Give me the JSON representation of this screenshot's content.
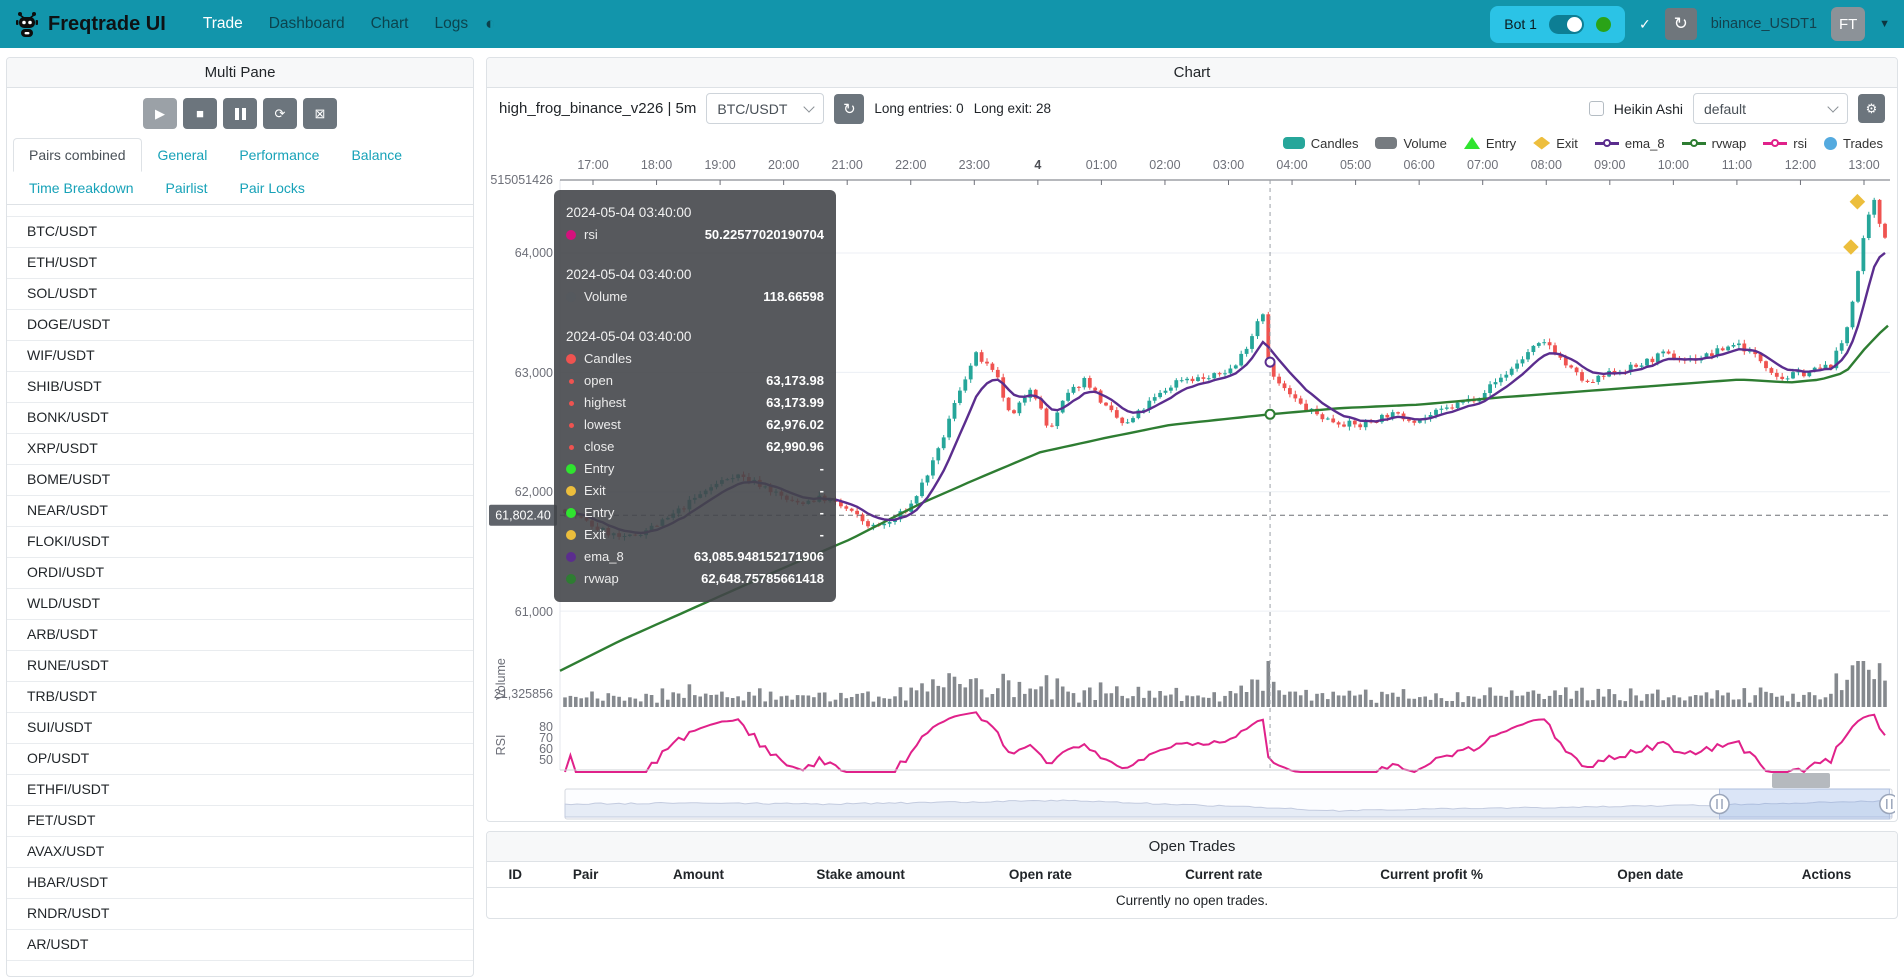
{
  "navbar": {
    "brand": "Freqtrade UI",
    "items": [
      {
        "label": "Trade",
        "active": true
      },
      {
        "label": "Dashboard",
        "active": false
      },
      {
        "label": "Chart",
        "active": false
      },
      {
        "label": "Logs",
        "active": false
      }
    ],
    "theme_icon": "◐",
    "bot": {
      "name": "Bot 1",
      "online": true
    },
    "check_icon": "✓",
    "reload_icon": "↻",
    "exchange_label": "binance_USDT1",
    "avatar": "FT",
    "caret": "▼"
  },
  "left_panel": {
    "title": "Multi Pane",
    "controls": [
      {
        "name": "play-button",
        "glyph": "▶",
        "disabled": true
      },
      {
        "name": "stop-button",
        "glyph": "■",
        "disabled": false
      },
      {
        "name": "pause-button",
        "glyph": "",
        "disabled": false
      },
      {
        "name": "reload-trades-button",
        "glyph": "⟳",
        "disabled": false
      },
      {
        "name": "clear-chart-button",
        "glyph": "⊠",
        "disabled": false
      }
    ],
    "tabs": [
      "Pairs combined",
      "General",
      "Performance",
      "Balance",
      "Time Breakdown",
      "Pairlist",
      "Pair Locks"
    ],
    "active_tab": "Pairs combined",
    "pairs": [
      "BTC/USDT",
      "ETH/USDT",
      "SOL/USDT",
      "DOGE/USDT",
      "WIF/USDT",
      "SHIB/USDT",
      "BONK/USDT",
      "XRP/USDT",
      "BOME/USDT",
      "NEAR/USDT",
      "FLOKI/USDT",
      "ORDI/USDT",
      "WLD/USDT",
      "ARB/USDT",
      "RUNE/USDT",
      "TRB/USDT",
      "SUI/USDT",
      "OP/USDT",
      "ETHFI/USDT",
      "FET/USDT",
      "AVAX/USDT",
      "HBAR/USDT",
      "RNDR/USDT",
      "AR/USDT"
    ]
  },
  "chart_panel": {
    "title": "Chart",
    "strategy": "high_frog_binance_v226 | 5m",
    "pair_select": "BTC/USDT",
    "refresh_icon": "↻",
    "long_entries": "Long entries: 0",
    "long_exit": "Long exit: 28",
    "heikin_ashi_label": "Heikin Ashi",
    "plot_config_select": "default",
    "gear_icon": "⚙",
    "legend": [
      {
        "label": "Candles",
        "color": "#26a69a",
        "shape": "pill"
      },
      {
        "label": "Volume",
        "color": "#767b80",
        "shape": "pill"
      },
      {
        "label": "Entry",
        "color": "#2fe42f",
        "shape": "triangle"
      },
      {
        "label": "Exit",
        "color": "#edbe3d",
        "shape": "diamond"
      },
      {
        "label": "ema_8",
        "color": "#5b2d8e",
        "shape": "line"
      },
      {
        "label": "rvwap",
        "color": "#2e7d32",
        "shape": "line"
      },
      {
        "label": "rsi",
        "color": "#e0218a",
        "shape": "line"
      },
      {
        "label": "Trades",
        "color": "#54aadf",
        "shape": "circle"
      }
    ],
    "tooltip": {
      "sections": [
        {
          "time": "2024-05-04 03:40:00",
          "rows": [
            {
              "label": "rsi",
              "dot": "#d4117d",
              "value": "50.22577020190704"
            }
          ]
        },
        {
          "time": "2024-05-04 03:40:00",
          "rows": [
            {
              "label": "Volume",
              "dot": "#55595e",
              "value": "118.66598"
            }
          ]
        },
        {
          "time": "2024-05-04 03:40:00",
          "rows": [
            {
              "label": "Candles",
              "dot": "#ef5350",
              "value": ""
            },
            {
              "label": "open",
              "dot": "#ef5350",
              "small": true,
              "value": "63,173.98"
            },
            {
              "label": "highest",
              "dot": "#ef5350",
              "small": true,
              "value": "63,173.99"
            },
            {
              "label": "lowest",
              "dot": "#ef5350",
              "small": true,
              "value": "62,976.02"
            },
            {
              "label": "close",
              "dot": "#ef5350",
              "small": true,
              "value": "62,990.96"
            },
            {
              "label": "Entry",
              "dot": "#2fe42f",
              "value": "-"
            },
            {
              "label": "Exit",
              "dot": "#ecbe3c",
              "value": "-"
            },
            {
              "label": "Entry",
              "dot": "#2fe42f",
              "value": "-"
            },
            {
              "label": "Exit",
              "dot": "#ecbe3c",
              "value": "-"
            },
            {
              "label": "ema_8",
              "dot": "#5b2d8e",
              "value": "63,085.948152171906"
            },
            {
              "label": "rvwap",
              "dot": "#2e7d32",
              "value": "62,648.75785661418"
            }
          ]
        }
      ]
    }
  },
  "chart_data": {
    "type": "candlestick",
    "pair": "BTC/USDT",
    "timeframe": "5m",
    "seed": 7,
    "candle_count": 245,
    "minutes_span": 1225,
    "x_labels": [
      "17:00",
      "18:00",
      "19:00",
      "20:00",
      "21:00",
      "22:00",
      "23:00",
      "4",
      "01:00",
      "02:00",
      "03:00",
      "04:00",
      "05:00",
      "06:00",
      "07:00",
      "08:00",
      "09:00",
      "10:00",
      "11:00",
      "12:00",
      "13:00"
    ],
    "y_labels": [
      "64,000",
      "63,000",
      "62,000",
      "61,000"
    ],
    "y_gridlines_price": [
      64000,
      63000,
      62000,
      61000
    ],
    "y_axis_top_label": "515051426",
    "volume_axis_label": "21,325856",
    "volume_pane_label": "Volume",
    "rsi_pane_label": "RSI",
    "rsi_labels": [
      "80",
      "70",
      "60",
      "50"
    ],
    "price_tag": "61,802.40",
    "dashed_price": 61802.4,
    "crosshair_minute": 654,
    "crosshair_time": "2024-05-04 03:40:00",
    "crosshair_ohlc": {
      "open": 63173.98,
      "high": 63173.99,
      "low": 62976.02,
      "close": 62990.96
    },
    "crosshair_ema8": 63085.948152171906,
    "crosshair_rvwap": 62648.75785661418,
    "crosshair_rsi": 50.22577020190704,
    "crosshair_volume": 118.66598,
    "price_keypoints": [
      [
        0,
        61850
      ],
      [
        28,
        61700
      ],
      [
        55,
        61600
      ],
      [
        92,
        61750
      ],
      [
        129,
        62000
      ],
      [
        157,
        62150
      ],
      [
        184,
        62050
      ],
      [
        212,
        61900
      ],
      [
        239,
        61950
      ],
      [
        262,
        61850
      ],
      [
        285,
        61700
      ],
      [
        304,
        61750
      ],
      [
        322,
        61900
      ],
      [
        345,
        62300
      ],
      [
        368,
        62900
      ],
      [
        382,
        63150
      ],
      [
        401,
        62950
      ],
      [
        414,
        62600
      ],
      [
        433,
        62900
      ],
      [
        449,
        62500
      ],
      [
        465,
        62800
      ],
      [
        483,
        62950
      ],
      [
        502,
        62700
      ],
      [
        520,
        62550
      ],
      [
        543,
        62750
      ],
      [
        571,
        62950
      ],
      [
        599,
        62950
      ],
      [
        622,
        63050
      ],
      [
        637,
        63300
      ],
      [
        647,
        63550
      ],
      [
        654,
        62990
      ],
      [
        668,
        62850
      ],
      [
        686,
        62700
      ],
      [
        709,
        62600
      ],
      [
        737,
        62550
      ],
      [
        764,
        62650
      ],
      [
        792,
        62600
      ],
      [
        820,
        62700
      ],
      [
        847,
        62800
      ],
      [
        875,
        63000
      ],
      [
        898,
        63200
      ],
      [
        912,
        63250
      ],
      [
        930,
        63050
      ],
      [
        949,
        62900
      ],
      [
        972,
        63000
      ],
      [
        995,
        63050
      ],
      [
        1018,
        63150
      ],
      [
        1041,
        63100
      ],
      [
        1064,
        63150
      ],
      [
        1087,
        63250
      ],
      [
        1110,
        63100
      ],
      [
        1128,
        62950
      ],
      [
        1151,
        63000
      ],
      [
        1174,
        63050
      ],
      [
        1188,
        63300
      ],
      [
        1199,
        63800
      ],
      [
        1208,
        64250
      ],
      [
        1216,
        64450
      ],
      [
        1221,
        64200
      ],
      [
        1225,
        64150
      ]
    ],
    "rvwap_keypoints": [
      [
        0,
        60500
      ],
      [
        55,
        60750
      ],
      [
        129,
        61050
      ],
      [
        203,
        61350
      ],
      [
        267,
        61600
      ],
      [
        332,
        61900
      ],
      [
        382,
        62100
      ],
      [
        442,
        62330
      ],
      [
        502,
        62450
      ],
      [
        562,
        62560
      ],
      [
        654,
        62649
      ],
      [
        718,
        62700
      ],
      [
        792,
        62730
      ],
      [
        866,
        62790
      ],
      [
        940,
        62840
      ],
      [
        1013,
        62890
      ],
      [
        1087,
        62940
      ],
      [
        1133,
        62915
      ],
      [
        1161,
        62940
      ],
      [
        1184,
        63000
      ],
      [
        1202,
        63200
      ],
      [
        1221,
        63380
      ],
      [
        1225,
        63400
      ]
    ],
    "exit_markers": [
      [
        1195,
        64430
      ],
      [
        1189,
        64050
      ]
    ],
    "nav_profile": [
      [
        0,
        0.5
      ],
      [
        0.1,
        0.45
      ],
      [
        0.2,
        0.5
      ],
      [
        0.3,
        0.42
      ],
      [
        0.38,
        0.35
      ],
      [
        0.45,
        0.5
      ],
      [
        0.52,
        0.62
      ],
      [
        0.58,
        0.78
      ],
      [
        0.65,
        0.72
      ],
      [
        0.72,
        0.66
      ],
      [
        0.8,
        0.6
      ],
      [
        0.86,
        0.55
      ],
      [
        0.92,
        0.48
      ],
      [
        0.97,
        0.4
      ],
      [
        1,
        0.38
      ]
    ],
    "zoom_window": [
      0.87,
      0.998
    ],
    "colors": {
      "up": "#26a69a",
      "down": "#ef5350",
      "ema": "#5b2d8e",
      "rvwap": "#2e7d32",
      "rsi": "#e0218a",
      "exit": "#ecbe3c",
      "volume": "#85898e"
    }
  },
  "open_trades": {
    "title": "Open Trades",
    "columns": [
      "ID",
      "Pair",
      "Amount",
      "Stake amount",
      "Open rate",
      "Current rate",
      "Current profit %",
      "Open date",
      "Actions"
    ],
    "empty_text": "Currently no open trades."
  }
}
